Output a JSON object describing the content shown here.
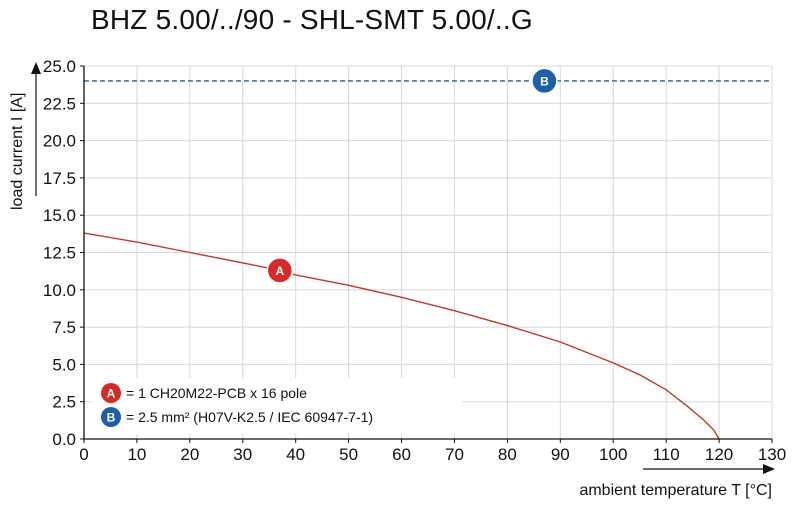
{
  "chart_data": {
    "type": "line",
    "title": "BHZ 5.00/../90 - SHL-SMT 5.00/..G",
    "xlabel": "ambient temperature T [°C]",
    "ylabel": "load current I [A]",
    "xlim": [
      0,
      130
    ],
    "ylim": [
      0,
      25
    ],
    "x_ticks": [
      0,
      10,
      20,
      30,
      40,
      50,
      60,
      70,
      80,
      90,
      100,
      110,
      120,
      130
    ],
    "y_ticks": [
      "0.0",
      "2.5",
      "5.0",
      "7.5",
      "10.0",
      "12.5",
      "15.0",
      "17.5",
      "20.0",
      "22.5",
      "25.0"
    ],
    "grid": true,
    "series": [
      {
        "marker": "A",
        "color": "#c0392b",
        "x": [
          0,
          10,
          20,
          30,
          37,
          40,
          50,
          60,
          70,
          80,
          90,
          100,
          105,
          110,
          114,
          117,
          119,
          120
        ],
        "y": [
          13.8,
          13.2,
          12.5,
          11.8,
          11.3,
          11.0,
          10.3,
          9.5,
          8.6,
          7.6,
          6.5,
          5.1,
          4.3,
          3.3,
          2.2,
          1.3,
          0.6,
          0.0
        ]
      },
      {
        "marker": "B",
        "color": "#1f5fa8",
        "style": "dashed",
        "x": [
          0,
          130
        ],
        "y": [
          24.0,
          24.0
        ]
      }
    ],
    "markers": [
      {
        "label": "A",
        "x": 37,
        "y": 11.3,
        "color": "#d42a2a"
      },
      {
        "label": "B",
        "x": 87,
        "y": 24.0,
        "color": "#1f5fa8"
      }
    ],
    "legend": {
      "placement": "bottom-left",
      "items": [
        {
          "marker": "A",
          "text": "= 1 CH20M22-PCB x 16 pole",
          "color": "#d42a2a"
        },
        {
          "marker": "B",
          "text": "= 2.5 mm² (H07V-K2.5 / IEC 60947-7-1)",
          "color": "#1f5fa8"
        }
      ]
    }
  }
}
